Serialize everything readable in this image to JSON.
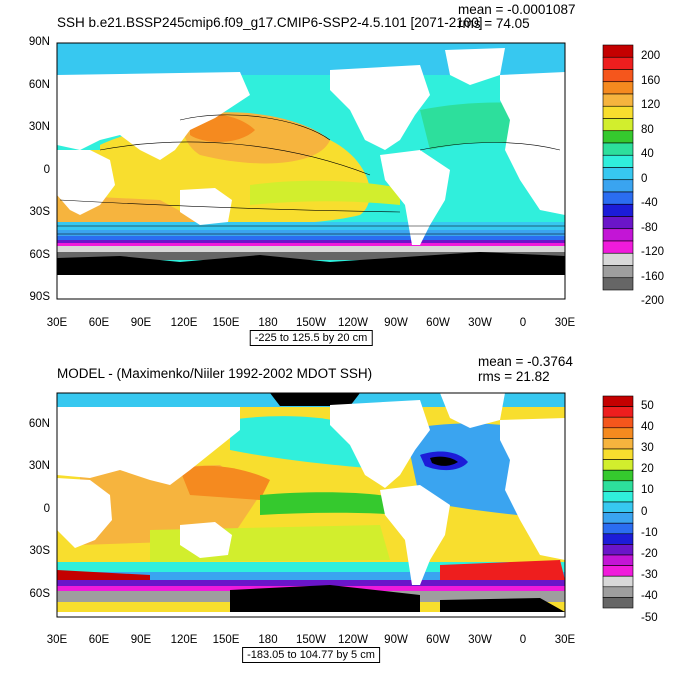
{
  "colors": {
    "land": "#ffffff",
    "frame": "#000000"
  },
  "panels": [
    {
      "title": "SSH b.e21.BSSP245cmip6.f09_g17.CMIP6-SSP2-4.5.101 [2071-2100]",
      "mean_label": "mean = -0.0001087",
      "rms_label": "rms = 74.05",
      "range_label": "-225 to 125.5 by 20 cm",
      "y_ticks": [
        "90N",
        "60N",
        "30N",
        "0",
        "30S",
        "60S",
        "90S"
      ],
      "x_ticks": [
        "30E",
        "60E",
        "90E",
        "120E",
        "150E",
        "180",
        "150W",
        "120W",
        "90W",
        "60W",
        "30W",
        "0",
        "30E"
      ],
      "colorbar": {
        "labels": [
          "200",
          "160",
          "120",
          "80",
          "40",
          "0",
          "-40",
          "-80",
          "-120",
          "-160",
          "-200"
        ],
        "colors": [
          "#c40000",
          "#ee1e1e",
          "#f5561c",
          "#f58a1f",
          "#f6b43e",
          "#f8de2e",
          "#d2ee2d",
          "#35c92e",
          "#2ddf9c",
          "#30efdc",
          "#37c8f0",
          "#3aa4f0",
          "#2b6df1",
          "#1c1cd8",
          "#6a15c9",
          "#c315d6",
          "#f01bdb",
          "#d8d8d8",
          "#9e9e9e",
          "#666666"
        ]
      }
    },
    {
      "title": "MODEL - (Maximenko/Niiler 1992-2002 MDOT SSH)",
      "mean_label": "mean = -0.3764",
      "rms_label": "rms = 21.82",
      "range_label": "-183.05 to 104.77 by 5 cm",
      "y_ticks": [
        "60N",
        "30N",
        "0",
        "30S",
        "60S"
      ],
      "x_ticks": [
        "30E",
        "60E",
        "90E",
        "120E",
        "150E",
        "180",
        "150W",
        "120W",
        "90W",
        "60W",
        "30W",
        "0",
        "30E"
      ],
      "colorbar": {
        "labels": [
          "50",
          "40",
          "30",
          "20",
          "10",
          "0",
          "-10",
          "-20",
          "-30",
          "-40",
          "-50"
        ],
        "colors": [
          "#c40000",
          "#ee1e1e",
          "#f5561c",
          "#f58a1f",
          "#f6b43e",
          "#f8de2e",
          "#d2ee2d",
          "#35c92e",
          "#2ddf9c",
          "#30efdc",
          "#37c8f0",
          "#3aa4f0",
          "#2b6df1",
          "#1c1cd8",
          "#6a15c9",
          "#c315d6",
          "#f01bdb",
          "#d8d8d8",
          "#9e9e9e",
          "#666666"
        ]
      }
    }
  ]
}
